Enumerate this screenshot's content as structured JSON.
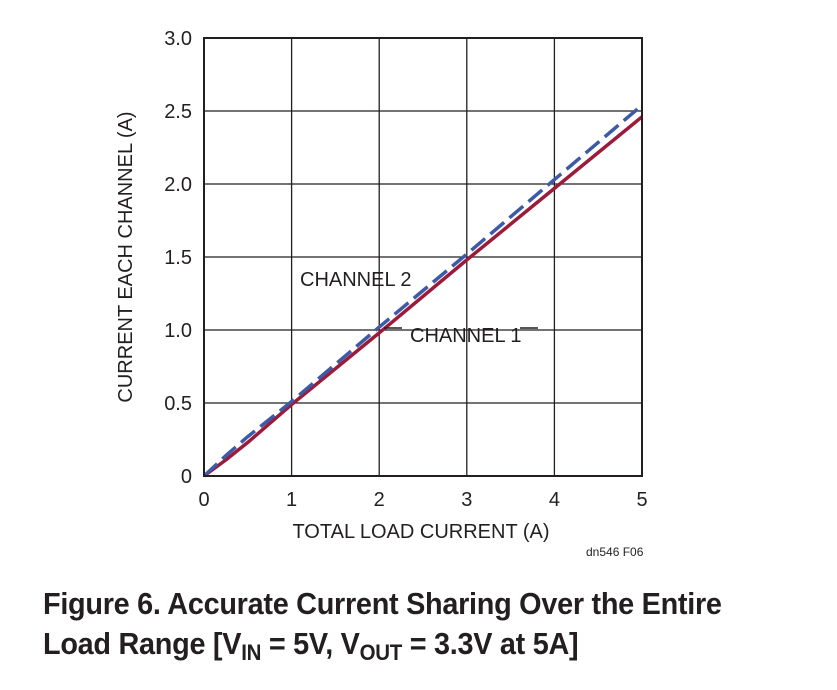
{
  "chart_data": {
    "type": "line",
    "xlabel": "TOTAL LOAD CURRENT (A)",
    "ylabel": "CURRENT EACH CHANNEL (A)",
    "xlim": [
      0,
      5
    ],
    "ylim": [
      0,
      3.0
    ],
    "x_ticks": [
      "0",
      "1",
      "2",
      "3",
      "4",
      "5"
    ],
    "y_ticks": [
      "0",
      "0.5",
      "1.0",
      "1.5",
      "2.0",
      "2.5",
      "3.0"
    ],
    "grid": true,
    "series": [
      {
        "name": "CHANNEL 1",
        "color": "#9b1b3a",
        "style": "solid",
        "x": [
          0,
          0.25,
          0.5,
          0.75,
          1,
          2,
          3,
          4,
          5
        ],
        "y": [
          0,
          0.11,
          0.23,
          0.36,
          0.49,
          0.98,
          1.48,
          1.97,
          2.46
        ]
      },
      {
        "name": "CHANNEL 2",
        "color": "#3c5aa6",
        "style": "dashed",
        "x": [
          0,
          0.25,
          0.5,
          0.75,
          1,
          2,
          3,
          4,
          5
        ],
        "y": [
          0,
          0.14,
          0.27,
          0.39,
          0.51,
          1.02,
          1.52,
          2.03,
          2.54
        ]
      }
    ],
    "annotations": [
      "CHANNEL 2",
      "CHANNEL 1"
    ]
  },
  "credit": "dn546 F06",
  "caption": {
    "line1": "Figure 6. Accurate Current Sharing Over the Entire",
    "line2_prefix": "Load Range [V",
    "line2_sub1": "IN",
    "line2_mid": " = 5V, V",
    "line2_sub2": "OUT",
    "line2_suffix": " = 3.3V at 5A]"
  }
}
